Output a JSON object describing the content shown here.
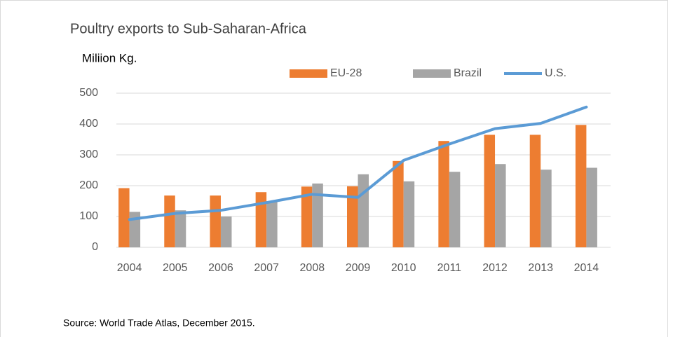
{
  "chart_data": {
    "type": "bar_line",
    "title": "Poultry exports to Sub-Saharan-Africa",
    "y_label": "Miliion Kg.",
    "source": "Source:  World Trade Atlas, December 2015.",
    "categories": [
      "2004",
      "2005",
      "2006",
      "2007",
      "2008",
      "2009",
      "2010",
      "2011",
      "2012",
      "2013",
      "2014"
    ],
    "series": [
      {
        "name": "EU-28",
        "type": "bar",
        "color": "#ed7d31",
        "values": [
          192,
          168,
          168,
          179,
          197,
          198,
          280,
          345,
          365,
          365,
          397
        ]
      },
      {
        "name": "Brazil",
        "type": "bar",
        "color": "#a5a5a5",
        "values": [
          115,
          120,
          100,
          150,
          207,
          237,
          214,
          245,
          270,
          252,
          258
        ]
      },
      {
        "name": "U.S.",
        "type": "line",
        "color": "#5b9bd5",
        "values": [
          90,
          110,
          120,
          145,
          172,
          162,
          282,
          335,
          385,
          402,
          455
        ]
      }
    ],
    "ylim": [
      0,
      500
    ],
    "yticks": [
      0,
      100,
      200,
      300,
      400,
      500
    ],
    "grid": true,
    "legend": "top"
  }
}
